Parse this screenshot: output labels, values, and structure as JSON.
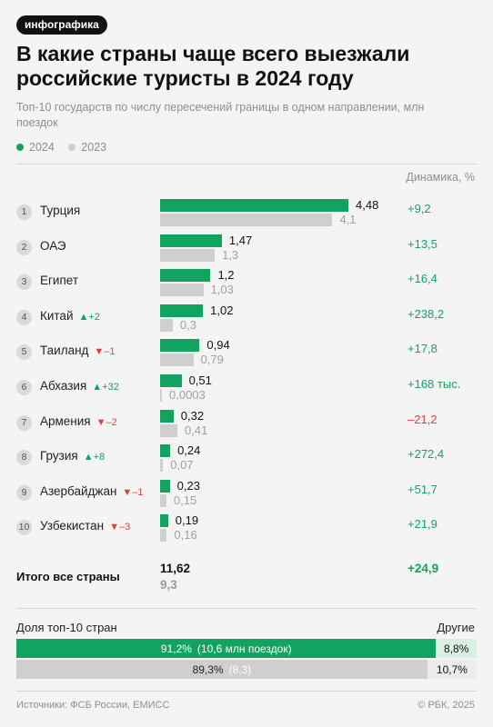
{
  "tag": "инфографика",
  "title": "В какие страны чаще всего выезжали российские туристы в 2024 году",
  "subtitle": "Топ-10 государств по числу пересечений границы в одном направлении, млн поездок",
  "legend": [
    {
      "label": "2024",
      "color": "#11a35f"
    },
    {
      "label": "2023",
      "color": "#cfcfcf"
    }
  ],
  "dynamics_header": "Динамика, %",
  "chart_data": {
    "type": "bar",
    "orientation": "horizontal",
    "series_names": [
      "2024",
      "2023"
    ],
    "xlim": [
      0,
      4.48
    ],
    "rows": [
      {
        "rank": "1",
        "country": "Турция",
        "change": "",
        "change_dir": "",
        "v2024": 4.48,
        "v2023": 4.1,
        "label2024": "4,48",
        "label2023": "4,1",
        "dynamics": "+9,2",
        "dyn_dir": "pos"
      },
      {
        "rank": "2",
        "country": "ОАЭ",
        "change": "",
        "change_dir": "",
        "v2024": 1.47,
        "v2023": 1.3,
        "label2024": "1,47",
        "label2023": "1,3",
        "dynamics": "+13,5",
        "dyn_dir": "pos"
      },
      {
        "rank": "3",
        "country": "Египет",
        "change": "",
        "change_dir": "",
        "v2024": 1.2,
        "v2023": 1.03,
        "label2024": "1,2",
        "label2023": "1,03",
        "dynamics": "+16,4",
        "dyn_dir": "pos"
      },
      {
        "rank": "4",
        "country": "Китай",
        "change": "+2",
        "change_dir": "up",
        "v2024": 1.02,
        "v2023": 0.3,
        "label2024": "1,02",
        "label2023": "0,3",
        "dynamics": "+238,2",
        "dyn_dir": "pos"
      },
      {
        "rank": "5",
        "country": "Таиланд",
        "change": "–1",
        "change_dir": "down",
        "v2024": 0.94,
        "v2023": 0.79,
        "label2024": "0,94",
        "label2023": "0,79",
        "dynamics": "+17,8",
        "dyn_dir": "pos"
      },
      {
        "rank": "6",
        "country": "Абхазия",
        "change": "+32",
        "change_dir": "up",
        "v2024": 0.51,
        "v2023": 0.0003,
        "label2024": "0,51",
        "label2023": "0,0003",
        "dynamics": "+168 тыс.",
        "dyn_dir": "pos"
      },
      {
        "rank": "7",
        "country": "Армения",
        "change": "–2",
        "change_dir": "down",
        "v2024": 0.32,
        "v2023": 0.41,
        "label2024": "0,32",
        "label2023": "0,41",
        "dynamics": "–21,2",
        "dyn_dir": "neg"
      },
      {
        "rank": "8",
        "country": "Грузия",
        "change": "+8",
        "change_dir": "up",
        "v2024": 0.24,
        "v2023": 0.07,
        "label2024": "0,24",
        "label2023": "0,07",
        "dynamics": "+272,4",
        "dyn_dir": "pos"
      },
      {
        "rank": "9",
        "country": "Азербайджан",
        "change": "–1",
        "change_dir": "down",
        "v2024": 0.23,
        "v2023": 0.15,
        "label2024": "0,23",
        "label2023": "0,15",
        "dynamics": "+51,7",
        "dyn_dir": "pos"
      },
      {
        "rank": "10",
        "country": "Узбекистан",
        "change": "–3",
        "change_dir": "down",
        "v2024": 0.19,
        "v2023": 0.16,
        "label2024": "0,19",
        "label2023": "0,16",
        "dynamics": "+21,9",
        "dyn_dir": "pos"
      }
    ],
    "total": {
      "label": "Итого все страны",
      "v2024": "11,62",
      "v2023": "9,3",
      "dynamics": "+24,9"
    },
    "share": {
      "label": "Доля топ-10 стран",
      "other_label": "Другие",
      "row2024": {
        "top_percent": 91.2,
        "top_text": "91,2%",
        "top_note": "(10,6 млн поездок)",
        "other_text": "8,8%"
      },
      "row2023": {
        "top_percent": 89.3,
        "top_text": "89,3%",
        "top_note": "(8,3)",
        "other_text": "10,7%"
      }
    }
  },
  "footer": {
    "sources": "Источники: ФСБ России, ЕМИСС",
    "copyright": "© РБК, 2025"
  }
}
